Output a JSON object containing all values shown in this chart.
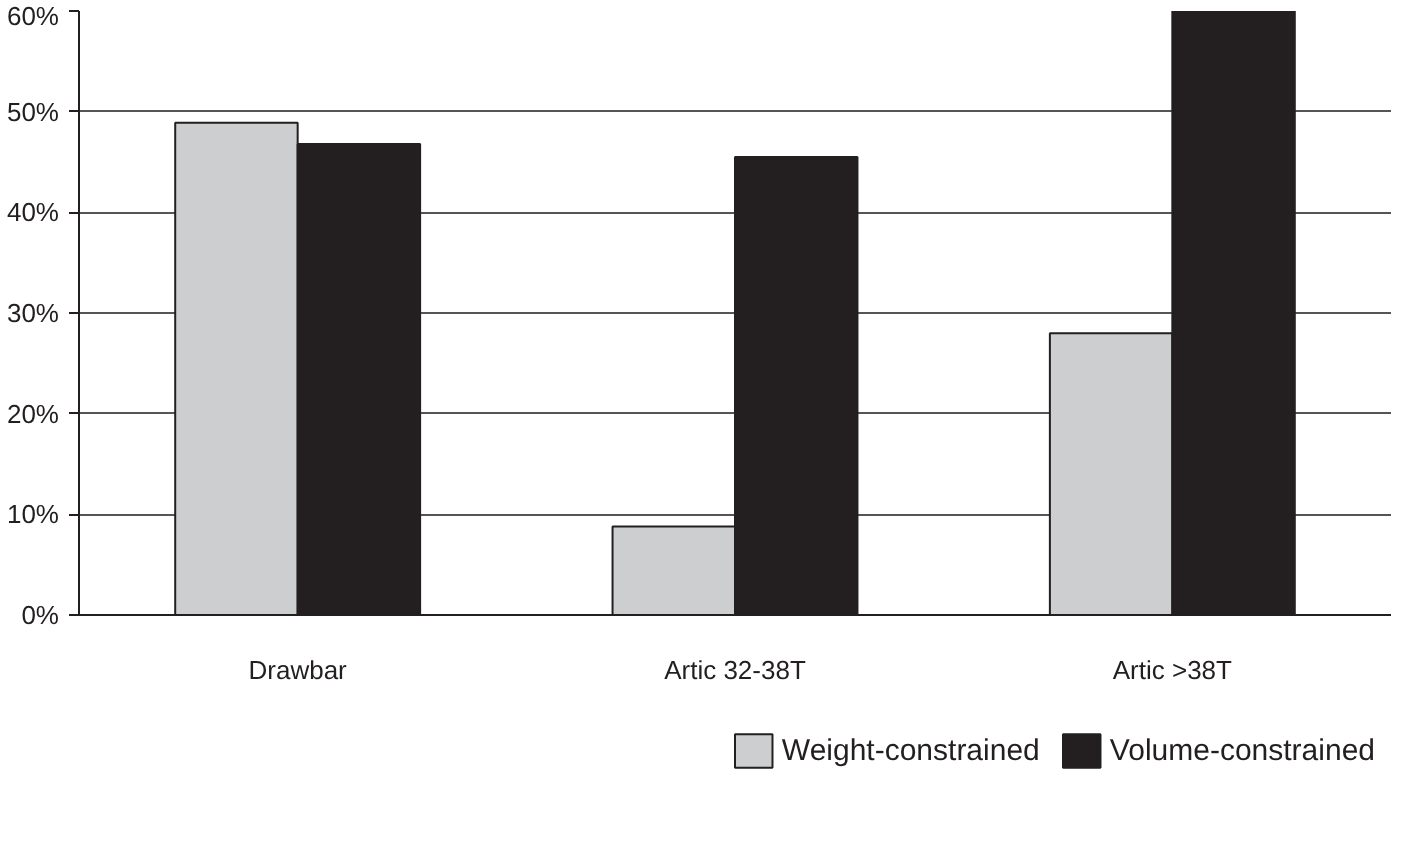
{
  "chart_data": {
    "type": "bar",
    "categories": [
      "Drawbar",
      "Artic 32-38T",
      "Artic >38T"
    ],
    "series": [
      {
        "name": "Weight-constrained",
        "color": "#cdced0",
        "values": [
          48.9,
          8.8,
          28
        ]
      },
      {
        "name": "Volume-constrained",
        "color": "#231f20",
        "values": [
          46.8,
          45.5,
          60
        ]
      }
    ],
    "ylim": [
      0,
      60
    ],
    "yticks": [
      {
        "value": 0,
        "label": "0%"
      },
      {
        "value": 10,
        "label": "10%"
      },
      {
        "value": 20,
        "label": "20%"
      },
      {
        "value": 30,
        "label": "30%"
      },
      {
        "value": 40,
        "label": "40%"
      },
      {
        "value": 50,
        "label": "50%"
      },
      {
        "value": 60,
        "label": "60%"
      }
    ],
    "grid": "y",
    "legend": "bottom"
  }
}
